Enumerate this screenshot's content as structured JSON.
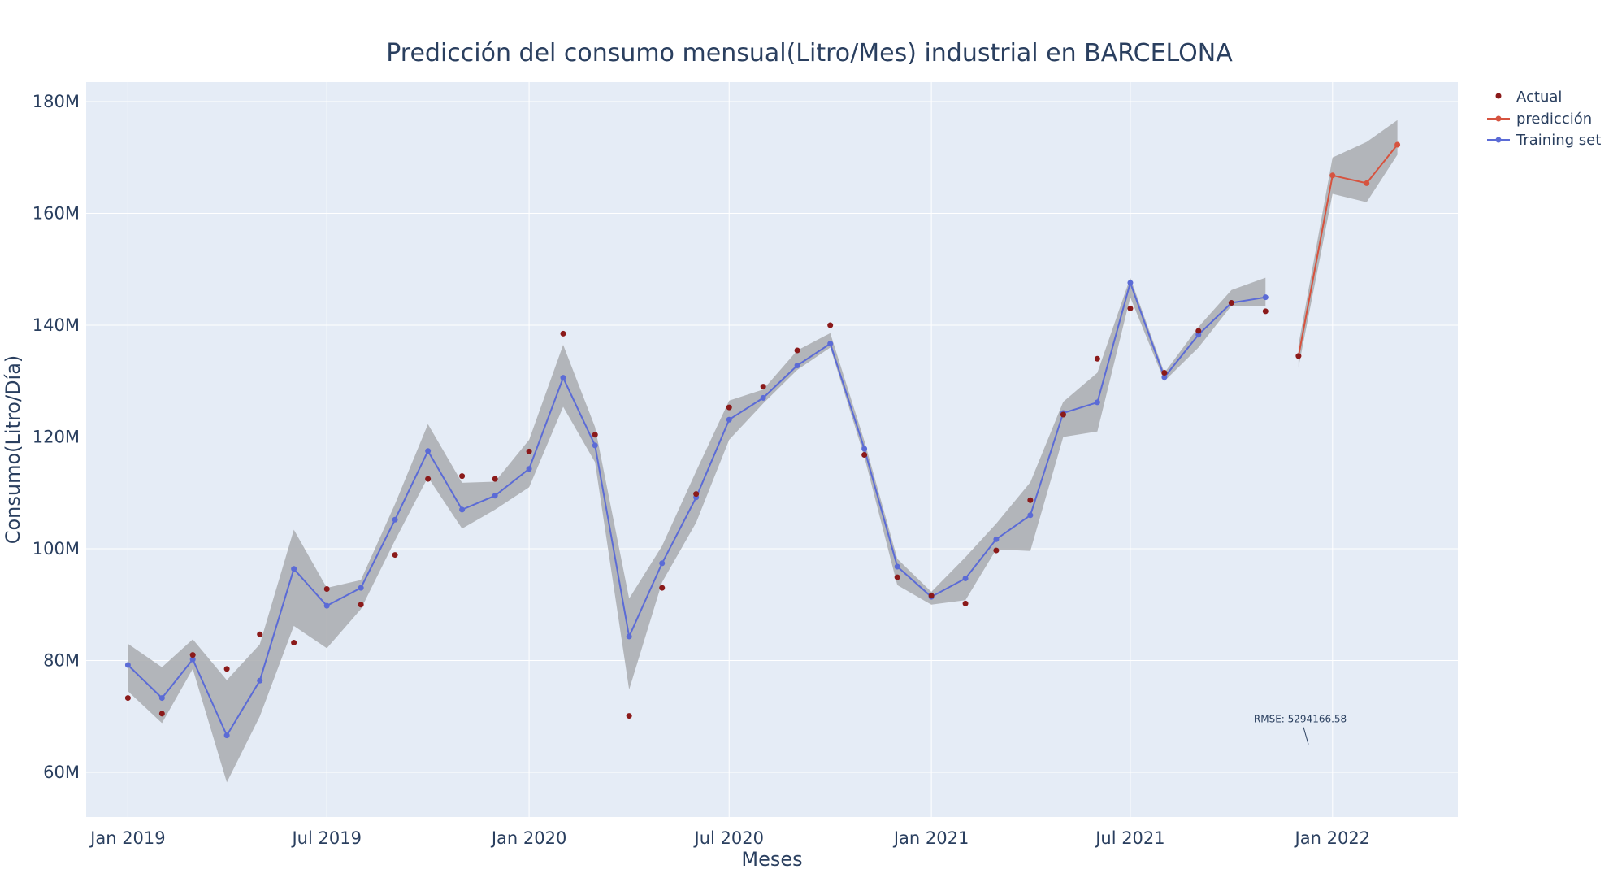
{
  "chart_data": {
    "type": "line",
    "title": "Predicción del consumo mensual(Litro/Mes) industrial en BARCELONA",
    "xlabel": "Meses",
    "ylabel": "Consumo(Litro/Día)",
    "x_tick_labels": [
      "Jan 2019",
      "Jul 2019",
      "Jan 2020",
      "Jul 2020",
      "Jan 2021",
      "Jul 2021",
      "Jan 2022"
    ],
    "y_tick_labels": [
      "60M",
      "80M",
      "100M",
      "120M",
      "140M",
      "160M",
      "180M"
    ],
    "y_ticks": [
      60000000,
      80000000,
      100000000,
      120000000,
      140000000,
      160000000,
      180000000
    ],
    "ylim": [
      52000000,
      183500000
    ],
    "xlim": [
      "2018-11-24",
      "2022-04-25"
    ],
    "grid": true,
    "legend_position": "top-right",
    "colors": {
      "plot_bg": "#e5ecf6",
      "actual": "#8b1a1a",
      "prediccion": "#d6533f",
      "training": "#5b6bd6",
      "band": "#a9abaf",
      "text": "#2a3f5f"
    },
    "series": [
      {
        "name": "Actual",
        "mode": "markers",
        "x": [
          "2019-01-01",
          "2019-02-01",
          "2019-03-01",
          "2019-04-01",
          "2019-05-01",
          "2019-06-01",
          "2019-07-01",
          "2019-08-01",
          "2019-09-01",
          "2019-10-01",
          "2019-11-01",
          "2019-12-01",
          "2020-01-01",
          "2020-02-01",
          "2020-03-01",
          "2020-04-01",
          "2020-05-01",
          "2020-06-01",
          "2020-07-01",
          "2020-08-01",
          "2020-09-01",
          "2020-10-01",
          "2020-11-01",
          "2020-12-01",
          "2021-01-01",
          "2021-02-01",
          "2021-03-01",
          "2021-04-01",
          "2021-05-01",
          "2021-06-01",
          "2021-07-01",
          "2021-08-01",
          "2021-09-01",
          "2021-10-01",
          "2021-11-01",
          "2021-12-01"
        ],
        "y": [
          73300000,
          70500000,
          81000000,
          78500000,
          84700000,
          83200000,
          92800000,
          90000000,
          98900000,
          112500000,
          113000000,
          112500000,
          117400000,
          138500000,
          120400000,
          70100000,
          93000000,
          109800000,
          125300000,
          129000000,
          135500000,
          140000000,
          116800000,
          94900000,
          91600000,
          90200000,
          99700000,
          108700000,
          124000000,
          134000000,
          143000000,
          131500000,
          139000000,
          144000000,
          142500000,
          134500000
        ]
      },
      {
        "name": "predicción",
        "mode": "lines+markers",
        "x": [
          "2021-12-01",
          "2022-01-01",
          "2022-02-01",
          "2022-03-01"
        ],
        "y": [
          134500000,
          166800000,
          165400000,
          172300000
        ],
        "lower": [
          132500000,
          163500000,
          162000000,
          170500000
        ],
        "upper": [
          136500000,
          170000000,
          172800000,
          176700000
        ]
      },
      {
        "name": "Training set",
        "mode": "lines+markers",
        "x": [
          "2019-01-01",
          "2019-02-01",
          "2019-03-01",
          "2019-04-01",
          "2019-05-01",
          "2019-06-01",
          "2019-07-01",
          "2019-08-01",
          "2019-09-01",
          "2019-10-01",
          "2019-11-01",
          "2019-12-01",
          "2020-01-01",
          "2020-02-01",
          "2020-03-01",
          "2020-04-01",
          "2020-05-01",
          "2020-06-01",
          "2020-07-01",
          "2020-08-01",
          "2020-09-01",
          "2020-10-01",
          "2020-11-01",
          "2020-12-01",
          "2021-01-01",
          "2021-02-01",
          "2021-03-01",
          "2021-04-01",
          "2021-05-01",
          "2021-06-01",
          "2021-07-01",
          "2021-08-01",
          "2021-09-01",
          "2021-10-01",
          "2021-11-01"
        ],
        "y": [
          79200000,
          73300000,
          80200000,
          66600000,
          76400000,
          96400000,
          89800000,
          93000000,
          105200000,
          117500000,
          107000000,
          109500000,
          114300000,
          130600000,
          118500000,
          84300000,
          97400000,
          109200000,
          123100000,
          127000000,
          132800000,
          136700000,
          117900000,
          96800000,
          91400000,
          94700000,
          101700000,
          106000000,
          124300000,
          126200000,
          147600000,
          130700000,
          138300000,
          144000000,
          145000000
        ],
        "lower": [
          74500000,
          68800000,
          78500000,
          58200000,
          70000000,
          86200000,
          82200000,
          89200000,
          101500000,
          112800000,
          103600000,
          107000000,
          111000000,
          125400000,
          115500000,
          74800000,
          94000000,
          104700000,
          119500000,
          126000000,
          132000000,
          136000000,
          116500000,
          93500000,
          90000000,
          90800000,
          99900000,
          99600000,
          120000000,
          121000000,
          145000000,
          130000000,
          136000000,
          143500000,
          143500000
        ],
        "upper": [
          83000000,
          78800000,
          83800000,
          76500000,
          82900000,
          103400000,
          93000000,
          94400000,
          108000000,
          122300000,
          111800000,
          112000000,
          119500000,
          136500000,
          121800000,
          91100000,
          100500000,
          113900000,
          126500000,
          128500000,
          135500000,
          138600000,
          119300000,
          98200000,
          92300000,
          98500000,
          104500000,
          111900000,
          126300000,
          131500000,
          148500000,
          131500000,
          139700000,
          146300000,
          148500000
        ]
      }
    ],
    "annotation": {
      "text": "RMSE: 5294166.58",
      "x": "2021-12-10",
      "y": 65000000
    }
  }
}
